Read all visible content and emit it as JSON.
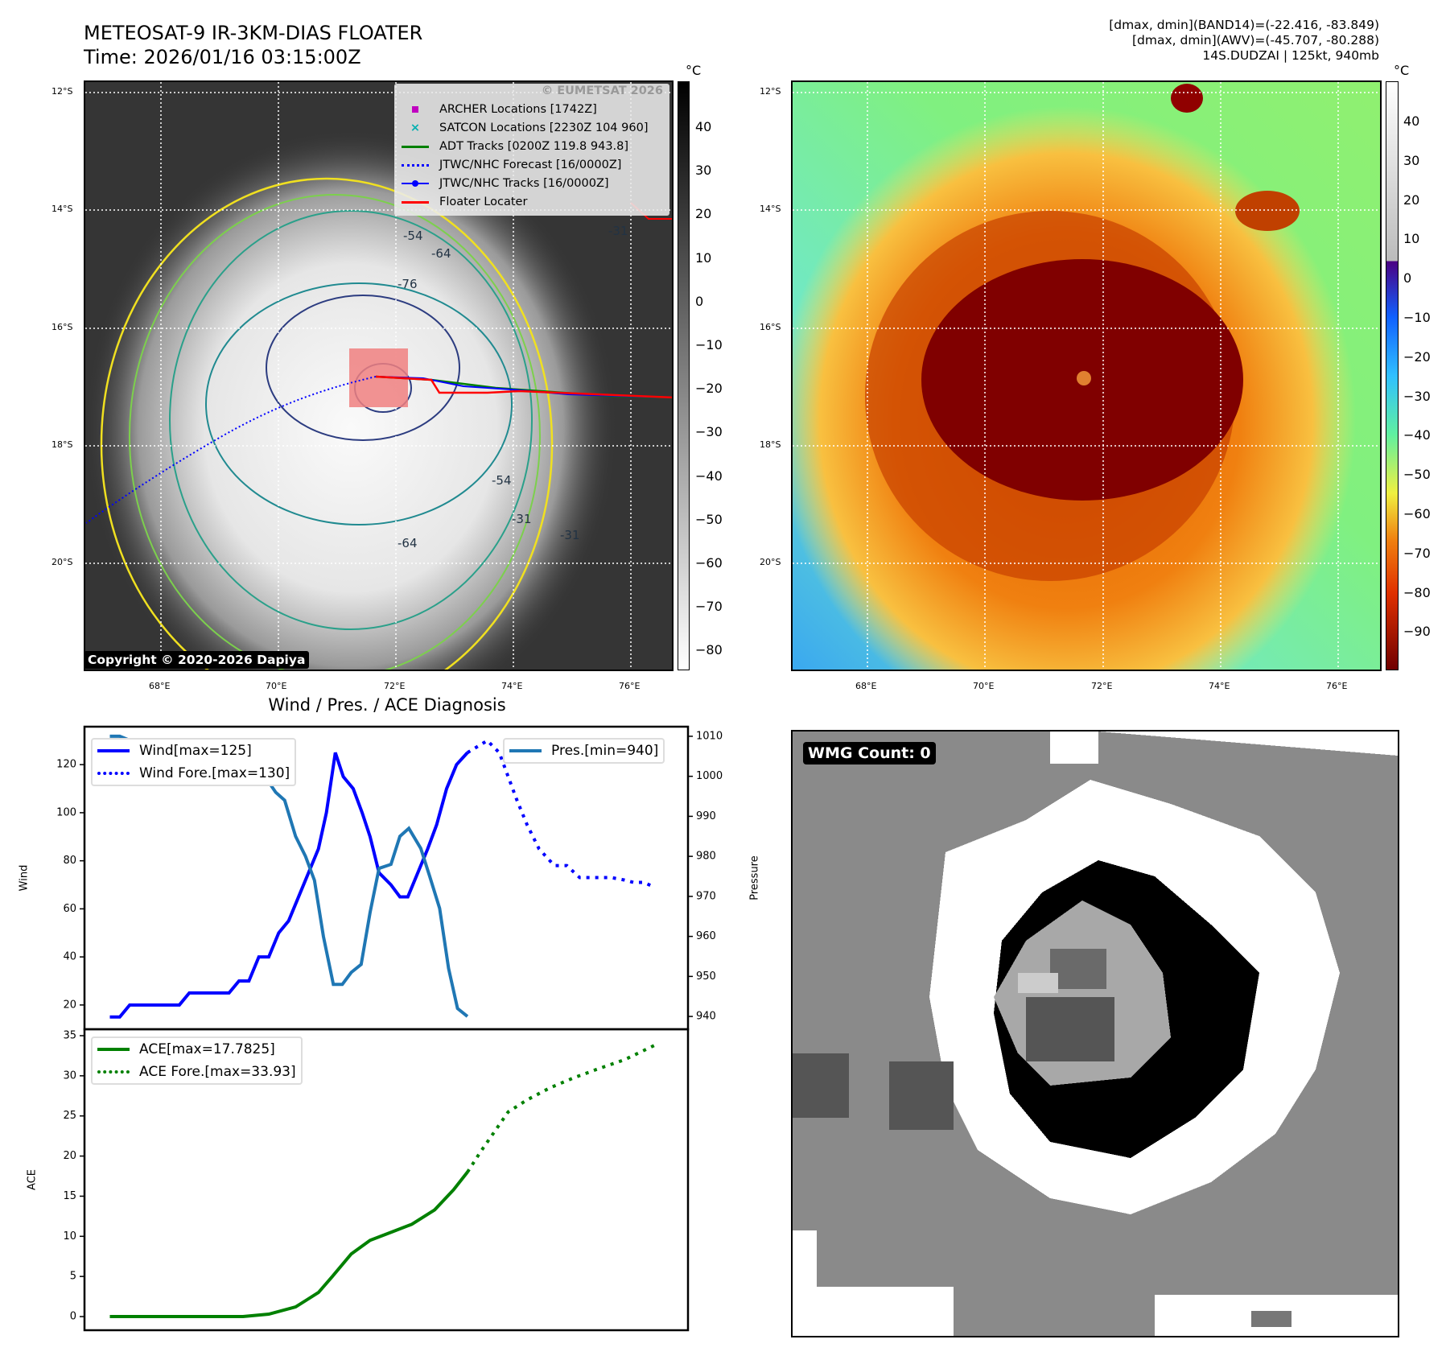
{
  "header": {
    "title": "METEOSAT-9 IR-3KM-DIAS FLOATER",
    "time": "Time: 2026/01/16 03:15:00Z"
  },
  "info": {
    "line1": "[dmax, dmin](BAND14)=(-22.416, -83.849)",
    "line2": "[dmax, dmin](AWV)=(-45.707, -80.288)",
    "line3": "14S.DUDZAI | 125kt, 940mb"
  },
  "maps": {
    "lat_labels": [
      "12°S",
      "14°S",
      "16°S",
      "18°S",
      "20°S"
    ],
    "lon_labels": [
      "68°E",
      "70°E",
      "72°E",
      "74°E",
      "76°E"
    ],
    "unit": "°C",
    "left_colorbar_ticks": [
      "40",
      "30",
      "20",
      "10",
      "0",
      "−10",
      "−20",
      "−30",
      "−40",
      "−50",
      "−60",
      "−70",
      "−80"
    ],
    "right_colorbar_ticks": [
      "40",
      "30",
      "20",
      "10",
      "0",
      "−10",
      "−20",
      "−30",
      "−40",
      "−50",
      "−60",
      "−70",
      "−80",
      "−90"
    ],
    "contour_labels": [
      "-76",
      "-64",
      "-54",
      "-64",
      "-54",
      "-31",
      "-31",
      "-31"
    ],
    "watermark": "© EUMETSAT 2026",
    "copyright": "Copyright © 2020-2026 Dapiya",
    "legend": [
      {
        "label": "ARCHER Locations [1742Z]",
        "color": "#c000c0"
      },
      {
        "label": "SATCON Locations [2230Z 104 960]",
        "color": "#00b0b0"
      },
      {
        "label": "ADT Tracks [0200Z 119.8 943.8]",
        "color": "#008000"
      },
      {
        "label": "JTWC/NHC Forecast [16/0000Z]",
        "color": "#0000ff"
      },
      {
        "label": "JTWC/NHC Tracks [16/0000Z]",
        "color": "#0000ff"
      },
      {
        "label": "Floater Locater",
        "color": "#ff0000"
      }
    ]
  },
  "wmg": {
    "label": "WMG Count: 0"
  },
  "chart_data": [
    {
      "type": "line",
      "title": "Wind / Pres. / ACE Diagnosis",
      "ylabel": "Wind",
      "y2label": "Pressure",
      "xlim": [
        -2.55,
        58.2
      ],
      "ylim": [
        9.9,
        135.8
      ],
      "y2lim": [
        936.8,
        1012.4
      ],
      "yticks": [
        "20",
        "40",
        "60",
        "80",
        "100",
        "120"
      ],
      "y2ticks": [
        "940",
        "950",
        "960",
        "970",
        "980",
        "990",
        "1000",
        "1010"
      ],
      "series": [
        {
          "name": "Wind[max=125]",
          "color": "#0000ff",
          "style": "solid",
          "axis": "left",
          "points": [
            [
              0,
              15
            ],
            [
              1,
              15
            ],
            [
              2,
              20
            ],
            [
              7,
              20
            ],
            [
              8,
              25
            ],
            [
              12,
              25
            ],
            [
              13,
              30
            ],
            [
              14,
              30
            ],
            [
              15,
              40
            ],
            [
              16,
              40
            ],
            [
              17,
              50
            ],
            [
              18,
              55
            ],
            [
              19,
              65
            ],
            [
              20,
              75
            ],
            [
              21,
              85
            ],
            [
              21.8,
              100
            ],
            [
              22.7,
              125
            ],
            [
              23.5,
              115
            ],
            [
              24.5,
              110
            ],
            [
              25.4,
              100
            ],
            [
              26.2,
              90
            ],
            [
              27.1,
              75
            ],
            [
              28.3,
              70
            ],
            [
              29.2,
              65
            ],
            [
              30,
              65
            ],
            [
              31,
              75
            ],
            [
              32,
              85
            ],
            [
              32.9,
              95
            ],
            [
              33.9,
              110
            ],
            [
              34.9,
              120
            ],
            [
              36,
              125
            ]
          ]
        },
        {
          "name": "Wind Fore.[max=130]",
          "color": "#0000ff",
          "style": "dotted",
          "axis": "left",
          "points": [
            [
              36,
              125
            ],
            [
              38,
              130
            ],
            [
              39.2,
              125
            ],
            [
              40.1,
              115
            ],
            [
              41,
              105
            ],
            [
              42,
              95
            ],
            [
              43.2,
              85
            ],
            [
              44.3,
              80
            ],
            [
              44.8,
              78
            ],
            [
              46,
              78
            ],
            [
              47.3,
              73
            ],
            [
              48.5,
              73
            ],
            [
              50.5,
              73
            ],
            [
              51.8,
              72
            ],
            [
              52.7,
              71
            ],
            [
              53.8,
              71
            ],
            [
              54.8,
              69
            ]
          ]
        },
        {
          "name": "Pres.[min=940]",
          "color": "#1f77b4",
          "style": "solid",
          "axis": "right",
          "points": [
            [
              0,
              1010
            ],
            [
              1,
              1010
            ],
            [
              2,
              1009
            ],
            [
              3.1,
              1006
            ],
            [
              8.7,
              1006
            ],
            [
              9.7,
              1007
            ],
            [
              11.8,
              1007
            ],
            [
              12.7,
              1004
            ],
            [
              13.6,
              1003
            ],
            [
              14.7,
              1000
            ],
            [
              15.6,
              1000
            ],
            [
              16.7,
              996
            ],
            [
              17.6,
              994
            ],
            [
              18.7,
              985
            ],
            [
              19.7,
              980
            ],
            [
              20.6,
              974
            ],
            [
              21.5,
              960
            ],
            [
              22.5,
              948
            ],
            [
              23.4,
              948
            ],
            [
              24.3,
              951
            ],
            [
              25.3,
              953
            ],
            [
              26.2,
              966
            ],
            [
              27.1,
              977
            ],
            [
              28.3,
              978
            ],
            [
              29.2,
              985
            ],
            [
              30.1,
              987
            ],
            [
              31.3,
              982
            ],
            [
              32.2,
              975
            ],
            [
              33.2,
              967
            ],
            [
              34.1,
              952
            ],
            [
              35,
              942
            ],
            [
              36,
              940
            ]
          ]
        }
      ]
    },
    {
      "type": "line",
      "ylabel": "ACE",
      "xlim": [
        -2.55,
        58.2
      ],
      "ylim": [
        -1.7,
        35.8
      ],
      "yticks": [
        "0",
        "5",
        "10",
        "15",
        "20",
        "25",
        "30",
        "35"
      ],
      "series": [
        {
          "name": "ACE[max=17.7825]",
          "color": "#008000",
          "style": "solid",
          "points": [
            [
              0,
              0
            ],
            [
              13.4,
              0
            ],
            [
              16,
              0.3
            ],
            [
              18.7,
              1.2
            ],
            [
              21,
              3
            ],
            [
              22.4,
              5
            ],
            [
              24.3,
              7.8
            ],
            [
              26.2,
              9.5
            ],
            [
              28.5,
              10.6
            ],
            [
              30.4,
              11.5
            ],
            [
              32.7,
              13.3
            ],
            [
              34.6,
              15.8
            ],
            [
              36,
              18
            ]
          ]
        },
        {
          "name": "ACE Fore.[max=33.93]",
          "color": "#008000",
          "style": "dotted",
          "points": [
            [
              36,
              18
            ],
            [
              37.3,
              20.5
            ],
            [
              38.7,
              23
            ],
            [
              40.1,
              25.5
            ],
            [
              42,
              27
            ],
            [
              44.3,
              28.5
            ],
            [
              46.6,
              29.7
            ],
            [
              49,
              30.8
            ],
            [
              51.8,
              32
            ],
            [
              55,
              33.9
            ]
          ]
        }
      ]
    }
  ]
}
